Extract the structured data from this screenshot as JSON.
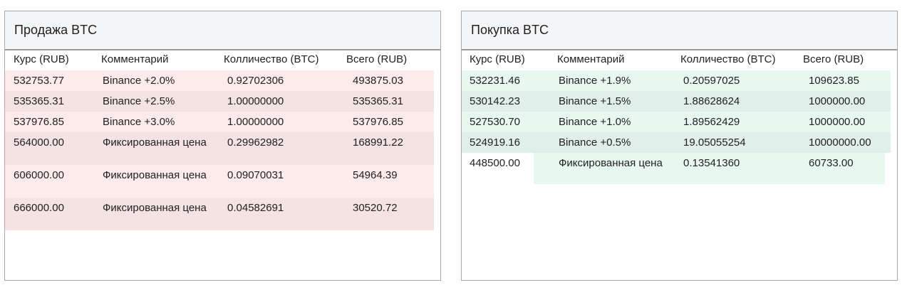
{
  "sell": {
    "title": "Продажа BTC",
    "columns": [
      "Курс (RUB)",
      "Комментарий",
      "Колличество (BTC)",
      "Всего (RUB)"
    ],
    "rows": [
      {
        "rate": "532753.77",
        "comment": "Binance +2.0%",
        "amount": "0.92702306",
        "total": "493875.03"
      },
      {
        "rate": "535365.31",
        "comment": "Binance +2.5%",
        "amount": "1.00000000",
        "total": "535365.31"
      },
      {
        "rate": "537976.85",
        "comment": "Binance +3.0%",
        "amount": "1.00000000",
        "total": "537976.85"
      },
      {
        "rate": "564000.00",
        "comment": "Фиксированная цена",
        "amount": "0.29962982",
        "total": "168991.22"
      },
      {
        "rate": "606000.00",
        "comment": "Фиксированная цена",
        "amount": "0.09070031",
        "total": "54964.39"
      },
      {
        "rate": "666000.00",
        "comment": "Фиксированная цена",
        "amount": "0.04582691",
        "total": "30520.72"
      }
    ]
  },
  "buy": {
    "title": "Покупка BTC",
    "columns": [
      "Курс (RUB)",
      "Комментарий",
      "Колличество (BTC)",
      "Всего (RUB)"
    ],
    "rows": [
      {
        "rate": "532231.46",
        "comment": "Binance +1.9%",
        "amount": "0.20597025",
        "total": "109623.85"
      },
      {
        "rate": "530142.23",
        "comment": "Binance +1.5%",
        "amount": "1.88628624",
        "total": "1000000.00"
      },
      {
        "rate": "527530.70",
        "comment": "Binance +1.0%",
        "amount": "1.89562429",
        "total": "1000000.00"
      },
      {
        "rate": "524919.16",
        "comment": "Binance +0.5%",
        "amount": "19.05055254",
        "total": "10000000.00"
      },
      {
        "rate": "448500.00",
        "comment": "Фиксированная цена",
        "amount": "0.13541360",
        "total": "60733.00"
      }
    ]
  }
}
